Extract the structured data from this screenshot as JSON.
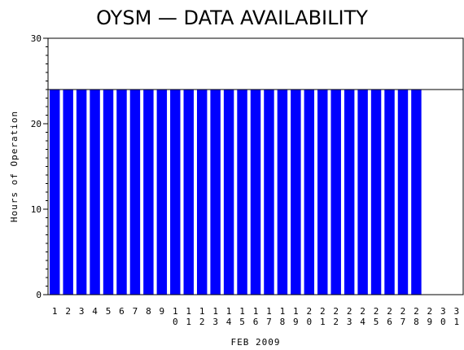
{
  "chart_data": {
    "type": "bar",
    "title": "OYSM — DATA AVAILABILITY",
    "xlabel": "FEB 2009",
    "ylabel": "Hours of Operation",
    "ylim": [
      0,
      30
    ],
    "yticks": [
      "0",
      "10",
      "20",
      "30"
    ],
    "reference_line": 24,
    "grid": false,
    "bar_color": "#0000ff",
    "categories": [
      "1",
      "2",
      "3",
      "4",
      "5",
      "6",
      "7",
      "8",
      "9",
      "10",
      "11",
      "12",
      "13",
      "14",
      "15",
      "16",
      "17",
      "18",
      "19",
      "20",
      "21",
      "22",
      "23",
      "24",
      "25",
      "26",
      "27",
      "28",
      "29",
      "30",
      "31"
    ],
    "values": [
      24,
      24,
      24,
      24,
      24,
      24,
      24,
      24,
      24,
      24,
      24,
      24,
      24,
      24,
      24,
      24,
      24,
      24,
      24,
      24,
      24,
      24,
      24,
      24,
      24,
      24,
      24,
      24,
      null,
      null,
      null
    ]
  }
}
